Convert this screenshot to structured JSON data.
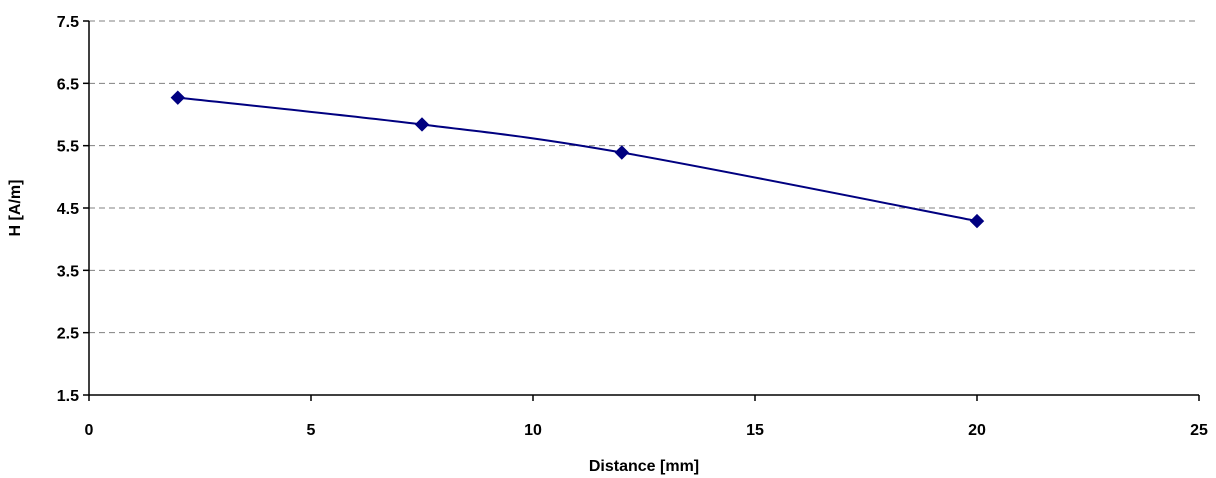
{
  "chart_data": {
    "type": "line",
    "title": "",
    "xlabel": "Distance [mm]",
    "ylabel": "H [A/m]",
    "xlim": [
      0,
      25
    ],
    "ylim": [
      1.5,
      7.5
    ],
    "x_ticks": [
      0,
      5,
      10,
      15,
      20,
      25
    ],
    "x_tick_labels": [
      "0",
      "5",
      "10",
      "15",
      "20",
      "25"
    ],
    "y_ticks": [
      1.5,
      2.5,
      3.5,
      4.5,
      5.5,
      6.5,
      7.5
    ],
    "y_tick_labels": [
      "1.5",
      "2.5",
      "3.5",
      "4.5",
      "5.5",
      "6.5",
      "7.5"
    ],
    "grid": "horizontal-dashed",
    "legend": "none",
    "series": [
      {
        "color": "#000080",
        "marker": "diamond",
        "smooth": true,
        "points": [
          {
            "x": 2,
            "y": 6.27
          },
          {
            "x": 7.5,
            "y": 5.84
          },
          {
            "x": 12,
            "y": 5.39
          },
          {
            "x": 20,
            "y": 4.29
          }
        ]
      }
    ]
  }
}
